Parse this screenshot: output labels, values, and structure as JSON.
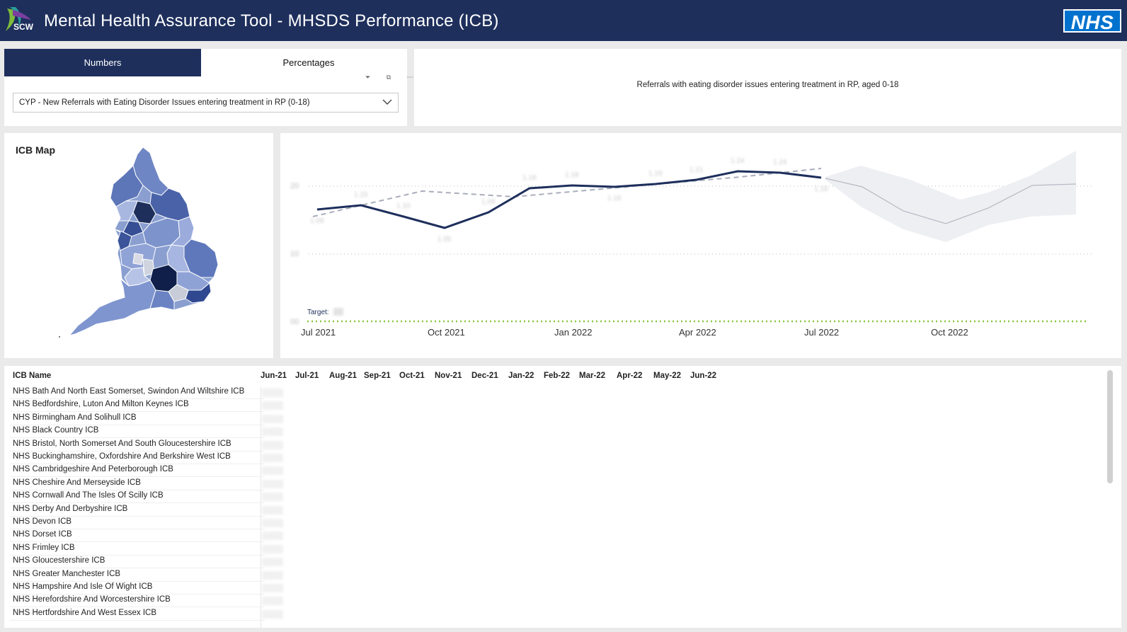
{
  "header": {
    "logo_text": "SCW",
    "title": "Mental Health Assurance Tool - MHSDS Performance (ICB)",
    "nhs_logo": "NHS"
  },
  "toggle": {
    "numbers_label": "Numbers",
    "percentages_label": "Percentages"
  },
  "visual_tools": "⏷ ⧉ ⋯",
  "measure_select": {
    "value": "CYP - New Referrals with Eating Disorder Issues entering treatment in RP (0-18)"
  },
  "subtitle": "Referrals with eating disorder issues entering treatment in RP, aged 0-18",
  "map": {
    "title": "ICB Map"
  },
  "chart_data": {
    "type": "line",
    "title": "",
    "x_tick_labels": [
      "Jul 2021",
      "Oct 2021",
      "Jan 2022",
      "Apr 2022",
      "Jul 2022",
      "Oct 2022"
    ],
    "target_label": "Target:",
    "colors": {
      "actual": "#1e2f5c",
      "trend": "#a9adbb",
      "forecast_band": "#eeeff2",
      "forecast_line": "#b5b9c4",
      "target": "#8cc63f"
    },
    "grid": "dotted horizontal"
  },
  "table": {
    "columns": [
      "ICB Name",
      "Jun-21",
      "Jul-21",
      "Aug-21",
      "Sep-21",
      "Oct-21",
      "Nov-21",
      "Dec-21",
      "Jan-22",
      "Feb-22",
      "Mar-22",
      "Apr-22",
      "May-22",
      "Jun-22"
    ],
    "rows": [
      "NHS Bath And North East Somerset, Swindon And Wiltshire ICB",
      "NHS Bedfordshire, Luton And Milton Keynes ICB",
      "NHS Birmingham And Solihull ICB",
      "NHS Black Country ICB",
      "NHS Bristol, North Somerset And South Gloucestershire ICB",
      "NHS Buckinghamshire, Oxfordshire And Berkshire West ICB",
      "NHS Cambridgeshire And Peterborough ICB",
      "NHS Cheshire And Merseyside ICB",
      "NHS Cornwall And The Isles Of Scilly ICB",
      "NHS Derby And Derbyshire ICB",
      "NHS Devon ICB",
      "NHS Dorset ICB",
      "NHS Frimley ICB",
      "NHS Gloucestershire ICB",
      "NHS Greater Manchester ICB",
      "NHS Hampshire And Isle Of Wight ICB",
      "NHS Herefordshire And Worcestershire ICB",
      "NHS Hertfordshire And West Essex ICB"
    ]
  }
}
